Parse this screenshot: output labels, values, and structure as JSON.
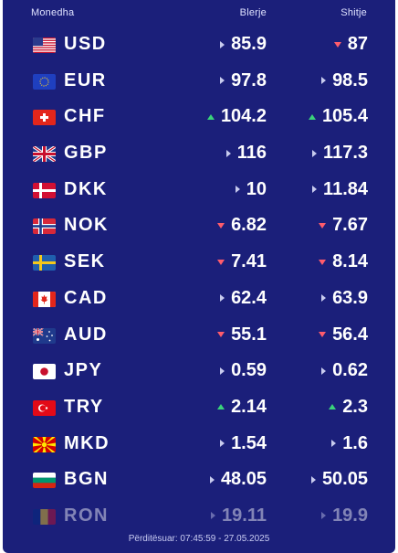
{
  "header": {
    "currency": "Monedha",
    "buy": "Blerje",
    "sell": "Shitje"
  },
  "rows": [
    {
      "code": "USD",
      "flag": "us-flag",
      "buy": "85.9",
      "buy_trend": "flat",
      "sell": "87",
      "sell_trend": "down"
    },
    {
      "code": "EUR",
      "flag": "eu-flag",
      "buy": "97.8",
      "buy_trend": "flat",
      "sell": "98.5",
      "sell_trend": "flat"
    },
    {
      "code": "CHF",
      "flag": "ch-flag",
      "buy": "104.2",
      "buy_trend": "up",
      "sell": "105.4",
      "sell_trend": "up"
    },
    {
      "code": "GBP",
      "flag": "gb-flag",
      "buy": "116",
      "buy_trend": "flat",
      "sell": "117.3",
      "sell_trend": "flat"
    },
    {
      "code": "DKK",
      "flag": "dk-flag",
      "buy": "10",
      "buy_trend": "flat",
      "sell": "11.84",
      "sell_trend": "flat"
    },
    {
      "code": "NOK",
      "flag": "no-flag",
      "buy": "6.82",
      "buy_trend": "down",
      "sell": "7.67",
      "sell_trend": "down"
    },
    {
      "code": "SEK",
      "flag": "se-flag",
      "buy": "7.41",
      "buy_trend": "down",
      "sell": "8.14",
      "sell_trend": "down"
    },
    {
      "code": "CAD",
      "flag": "ca-flag",
      "buy": "62.4",
      "buy_trend": "flat",
      "sell": "63.9",
      "sell_trend": "flat"
    },
    {
      "code": "AUD",
      "flag": "au-flag",
      "buy": "55.1",
      "buy_trend": "down",
      "sell": "56.4",
      "sell_trend": "down"
    },
    {
      "code": "JPY",
      "flag": "jp-flag",
      "buy": "0.59",
      "buy_trend": "flat",
      "sell": "0.62",
      "sell_trend": "flat"
    },
    {
      "code": "TRY",
      "flag": "tr-flag",
      "buy": "2.14",
      "buy_trend": "up",
      "sell": "2.3",
      "sell_trend": "up"
    },
    {
      "code": "MKD",
      "flag": "mk-flag",
      "buy": "1.54",
      "buy_trend": "flat",
      "sell": "1.6",
      "sell_trend": "flat"
    },
    {
      "code": "BGN",
      "flag": "bg-flag",
      "buy": "48.05",
      "buy_trend": "flat",
      "sell": "50.05",
      "sell_trend": "flat"
    },
    {
      "code": "RON",
      "flag": "ro-flag",
      "buy": "19.11",
      "buy_trend": "flat",
      "sell": "19.9",
      "sell_trend": "flat"
    }
  ],
  "footer": "Përditësuar: 07:45:59 - 27.05.2025",
  "colors": {
    "background": "#1b1f7a",
    "up": "#3ad37a",
    "down": "#ff5c6c",
    "flat": "#c8cbee"
  }
}
